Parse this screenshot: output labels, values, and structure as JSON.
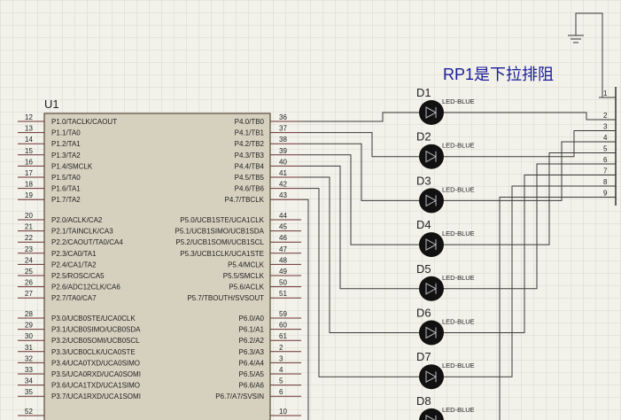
{
  "chip": {
    "ref": "U1",
    "left_pins": [
      {
        "number": "12",
        "label": "P1.0/TACLK/CAOUT"
      },
      {
        "number": "13",
        "label": "P1.1/TA0"
      },
      {
        "number": "14",
        "label": "P1.2/TA1"
      },
      {
        "number": "15",
        "label": "P1.3/TA2"
      },
      {
        "number": "16",
        "label": "P1.4/SMCLK"
      },
      {
        "number": "17",
        "label": "P1.5/TA0"
      },
      {
        "number": "18",
        "label": "P1.6/TA1"
      },
      {
        "number": "19",
        "label": "P1.7/TA2"
      },
      {
        "number": "20",
        "label": "P2.0/ACLK/CA2"
      },
      {
        "number": "21",
        "label": "P2.1/TAINCLK/CA3"
      },
      {
        "number": "22",
        "label": "P2.2/CAOUT/TA0/CA4"
      },
      {
        "number": "23",
        "label": "P2.3/CA0/TA1"
      },
      {
        "number": "24",
        "label": "P2.4/CA1/TA2"
      },
      {
        "number": "25",
        "label": "P2.5/ROSC/CA5"
      },
      {
        "number": "26",
        "label": "P2.6/ADC12CLK/CA6"
      },
      {
        "number": "27",
        "label": "P2.7/TA0/CA7"
      },
      {
        "number": "28",
        "label": "P3.0/UCB0STE/UCA0CLK"
      },
      {
        "number": "29",
        "label": "P3.1/UCB0SIMO/UCB0SDA"
      },
      {
        "number": "30",
        "label": "P3.2/UCB0SOMI/UCB0SCL"
      },
      {
        "number": "31",
        "label": "P3.3/UCB0CLK/UCA0STE"
      },
      {
        "number": "32",
        "label": "P3.4/UCA0TXD/UCA0SIMO"
      },
      {
        "number": "33",
        "label": "P3.5/UCA0RXD/UCA0SOMI"
      },
      {
        "number": "34",
        "label": "P3.6/UCA1TXD/UCA1SIMO"
      },
      {
        "number": "35",
        "label": "P3.7/UCA1RXD/UCA1SOMI"
      },
      {
        "number": "52"
      }
    ],
    "right_pins": [
      {
        "number": "36",
        "label": "P4.0/TB0"
      },
      {
        "number": "37",
        "label": "P4.1/TB1"
      },
      {
        "number": "38",
        "label": "P4.2/TB2"
      },
      {
        "number": "39",
        "label": "P4.3/TB3"
      },
      {
        "number": "40",
        "label": "P4.4/TB4"
      },
      {
        "number": "41",
        "label": "P4.5/TB5"
      },
      {
        "number": "42",
        "label": "P4.6/TB6"
      },
      {
        "number": "43",
        "label": "P4.7/TBCLK"
      },
      {
        "number": "44",
        "label": "P5.0/UCB1STE/UCA1CLK"
      },
      {
        "number": "45",
        "label": "P5.1/UCB1SIMO/UCB1SDA"
      },
      {
        "number": "46",
        "label": "P5.2/UCB1SOMI/UCB1SCL"
      },
      {
        "number": "47",
        "label": "P5.3/UCB1CLK/UCA1STE"
      },
      {
        "number": "48",
        "label": "P5.4/MCLK"
      },
      {
        "number": "49",
        "label": "P5.5/SMCLK"
      },
      {
        "number": "50",
        "label": "P5.6/ACLK"
      },
      {
        "number": "51",
        "label": "P5.7/TBOUTH/SVSOUT"
      },
      {
        "number": "59",
        "label": "P6.0/A0"
      },
      {
        "number": "60",
        "label": "P6.1/A1"
      },
      {
        "number": "61",
        "label": "P6.2/A2"
      },
      {
        "number": "2",
        "label": "P6.3/A3"
      },
      {
        "number": "3",
        "label": "P6.4/A4"
      },
      {
        "number": "4",
        "label": "P6.5/A5"
      },
      {
        "number": "5",
        "label": "P6.6/A6"
      },
      {
        "number": "6",
        "label": "P6.7/A7/SVSIN"
      },
      {
        "number": "10"
      }
    ]
  },
  "leds": [
    {
      "ref": "D1",
      "value": "LED-BLUE"
    },
    {
      "ref": "D2",
      "value": "LED-BLUE"
    },
    {
      "ref": "D3",
      "value": "LED-BLUE"
    },
    {
      "ref": "D4",
      "value": "LED-BLUE"
    },
    {
      "ref": "D5",
      "value": "LED-BLUE"
    },
    {
      "ref": "D6",
      "value": "LED-BLUE"
    },
    {
      "ref": "D7",
      "value": "LED-BLUE"
    },
    {
      "ref": "D8",
      "value": "LED-BLUE"
    }
  ],
  "resistor_note": "RP1是下拉排阻",
  "resistor_pins": [
    "1",
    "2",
    "3",
    "4",
    "5",
    "6",
    "7",
    "8",
    "9"
  ]
}
